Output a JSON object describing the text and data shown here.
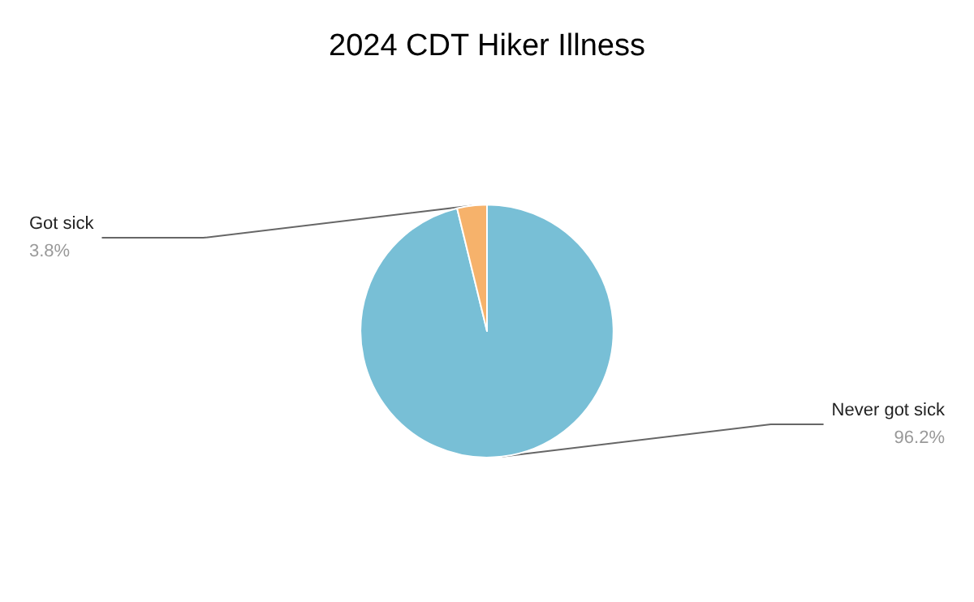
{
  "chart_data": {
    "type": "pie",
    "title": "2024 CDT Hiker Illness",
    "categories": [
      "Never got sick",
      "Got sick"
    ],
    "values": [
      96.2,
      3.8
    ],
    "colors": [
      "#78bfd6",
      "#f6b26b"
    ],
    "value_labels": [
      "96.2%",
      "3.8%"
    ],
    "legend": false
  }
}
